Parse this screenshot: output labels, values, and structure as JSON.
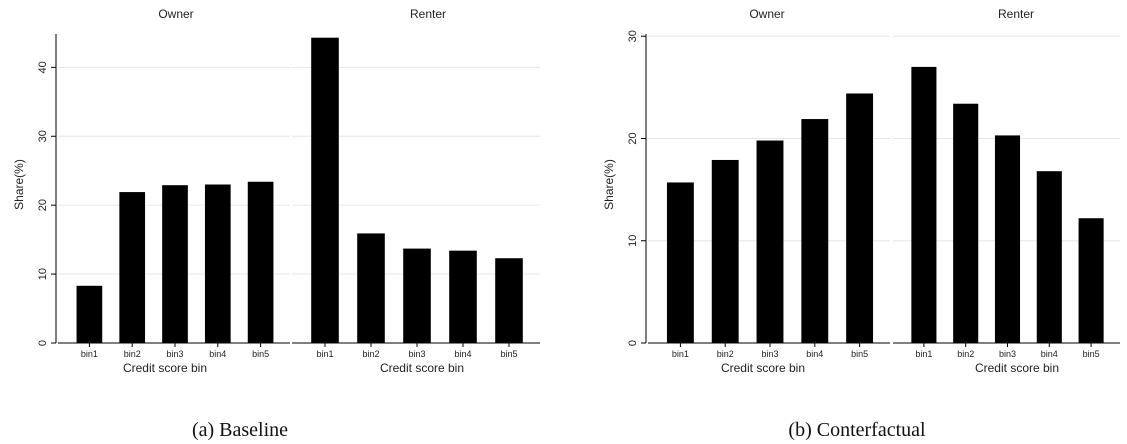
{
  "chart_data": [
    {
      "type": "bar",
      "caption": "(a)  Baseline",
      "ylabel": "Share(%)",
      "xlabel": "Credit score bin",
      "ylim": [
        0,
        46
      ],
      "yticks": [
        0,
        10,
        20,
        30,
        40
      ],
      "grid": true,
      "categories": [
        "bin1",
        "bin2",
        "bin3",
        "bin4",
        "bin5"
      ],
      "panels": [
        {
          "name": "Owner",
          "values": [
            8.3,
            21.9,
            22.9,
            23.0,
            23.4
          ]
        },
        {
          "name": "Renter",
          "values": [
            44.3,
            15.9,
            13.7,
            13.4,
            12.3
          ]
        }
      ]
    },
    {
      "type": "bar",
      "caption": "(b)  Conterfactual",
      "ylabel": "Share(%)",
      "xlabel": "Credit score bin",
      "ylim": [
        0,
        31
      ],
      "yticks": [
        0,
        10,
        20,
        30
      ],
      "grid": true,
      "categories": [
        "bin1",
        "bin2",
        "bin3",
        "bin4",
        "bin5"
      ],
      "panels": [
        {
          "name": "Owner",
          "values": [
            15.7,
            17.9,
            19.8,
            21.9,
            24.4
          ]
        },
        {
          "name": "Renter",
          "values": [
            27.0,
            23.4,
            20.3,
            16.8,
            12.2
          ]
        }
      ]
    }
  ]
}
